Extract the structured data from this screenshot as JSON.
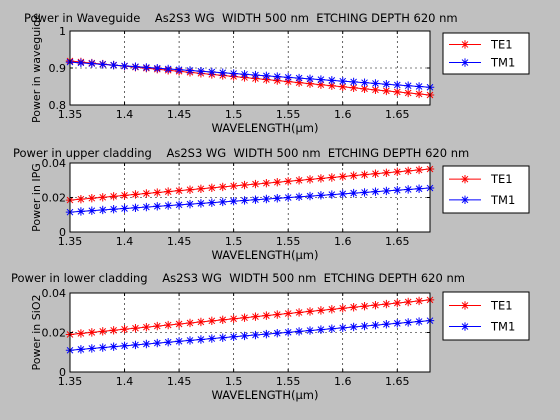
{
  "figure": {
    "background": "#c0c0c0"
  },
  "chart_data": [
    {
      "type": "line",
      "title": "Power in Waveguide    As2S3 WG  WIDTH 500 nm  ETCHING DEPTH 620 nm",
      "xlabel": "WAVELENGTH(μm)",
      "ylabel": "Power in waveguide",
      "xlim": [
        1.35,
        1.68
      ],
      "ylim": [
        0.8,
        1.0
      ],
      "xticks": [
        1.35,
        1.4,
        1.45,
        1.5,
        1.55,
        1.6,
        1.65
      ],
      "xtick_labels": [
        "1.35",
        "1.4",
        "1.45",
        "1.5",
        "1.55",
        "1.6",
        "1.65"
      ],
      "yticks": [
        0.8,
        0.9,
        1.0
      ],
      "ytick_labels": [
        "0.8",
        "0.9",
        "1"
      ],
      "grid": true,
      "legend": "outside-right",
      "series": [
        {
          "name": "TE1",
          "color": "#ff0000",
          "marker": "asterisk",
          "x": [
            1.35,
            1.68
          ],
          "y": [
            0.919,
            0.827
          ]
        },
        {
          "name": "TM1",
          "color": "#0000ff",
          "marker": "asterisk",
          "x": [
            1.35,
            1.68
          ],
          "y": [
            0.916,
            0.848
          ]
        }
      ]
    },
    {
      "type": "line",
      "title": "Power in upper cladding    As2S3 WG  WIDTH 500 nm  ETCHING DEPTH 620 nm",
      "xlabel": "WAVELENGTH(μm)",
      "ylabel": "Power in IPG",
      "xlim": [
        1.35,
        1.68
      ],
      "ylim": [
        0,
        0.04
      ],
      "xticks": [
        1.35,
        1.4,
        1.45,
        1.5,
        1.55,
        1.6,
        1.65
      ],
      "xtick_labels": [
        "1.35",
        "1.4",
        "1.45",
        "1.5",
        "1.55",
        "1.6",
        "1.65"
      ],
      "yticks": [
        0,
        0.02,
        0.04
      ],
      "ytick_labels": [
        "0",
        "0.02",
        "0.04"
      ],
      "grid": true,
      "legend": "outside-right",
      "series": [
        {
          "name": "TE1",
          "color": "#ff0000",
          "marker": "asterisk",
          "x": [
            1.35,
            1.68
          ],
          "y": [
            0.0185,
            0.0365
          ]
        },
        {
          "name": "TM1",
          "color": "#0000ff",
          "marker": "asterisk",
          "x": [
            1.35,
            1.68
          ],
          "y": [
            0.0115,
            0.0255
          ]
        }
      ]
    },
    {
      "type": "line",
      "title": "Power in lower cladding    As2S3 WG  WIDTH 500 nm  ETCHING DEPTH 620 nm",
      "xlabel": "WAVELENGTH(μm)",
      "ylabel": "Power in SiO2",
      "xlim": [
        1.35,
        1.68
      ],
      "ylim": [
        0,
        0.04
      ],
      "xticks": [
        1.35,
        1.4,
        1.45,
        1.5,
        1.55,
        1.6,
        1.65
      ],
      "xtick_labels": [
        "1.35",
        "1.4",
        "1.45",
        "1.5",
        "1.55",
        "1.6",
        "1.65"
      ],
      "yticks": [
        0,
        0.02,
        0.04
      ],
      "ytick_labels": [
        "0",
        "0.02",
        "0.04"
      ],
      "grid": true,
      "legend": "outside-right",
      "series": [
        {
          "name": "TE1",
          "color": "#ff0000",
          "marker": "asterisk",
          "x": [
            1.35,
            1.68
          ],
          "y": [
            0.019,
            0.0365
          ]
        },
        {
          "name": "TM1",
          "color": "#0000ff",
          "marker": "asterisk",
          "x": [
            1.35,
            1.68
          ],
          "y": [
            0.011,
            0.026
          ]
        }
      ]
    }
  ]
}
